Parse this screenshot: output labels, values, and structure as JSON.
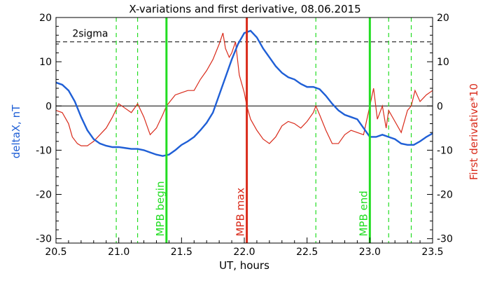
{
  "chart_data": {
    "type": "line",
    "title": "X-variations and first derivative, 08.06.2015",
    "xlabel": "UT, hours",
    "ylabel_left": "deltaX, nT",
    "ylabel_right": "First derivative*10",
    "xlim": [
      20.5,
      23.5
    ],
    "ylim": [
      -31,
      20
    ],
    "x_ticks": [
      "20.5",
      "21.0",
      "21.5",
      "22.0",
      "22.5",
      "23.0",
      "23.5"
    ],
    "y_ticks_left": [
      "-30",
      "-20",
      "-10",
      "0",
      "10",
      "20"
    ],
    "y_ticks_right": [
      "-30",
      "-20",
      "-10",
      "0",
      "10",
      "20"
    ],
    "colors": {
      "deltaX": "#1f5fd6",
      "derivative": "#d92b1b",
      "mpb_lines": "#22dd22",
      "mpb_max": "#d92b1b",
      "axis": "#000000"
    },
    "threshold": {
      "label": "2sigma",
      "value": 14.5
    },
    "zero_line": 0,
    "vertical_solid": [
      {
        "x": 21.38,
        "label": "MPB begin",
        "color": "#22dd22"
      },
      {
        "x": 22.02,
        "label": "MPB max",
        "color": "#d92b1b"
      },
      {
        "x": 23.0,
        "label": "MPB end",
        "color": "#22dd22"
      }
    ],
    "vertical_dashed": [
      20.98,
      21.15,
      22.57,
      23.15,
      23.33
    ],
    "series": [
      {
        "name": "deltaX, nT",
        "x": [
          20.5,
          20.55,
          20.6,
          20.65,
          20.7,
          20.75,
          20.8,
          20.85,
          20.9,
          20.95,
          21.0,
          21.05,
          21.1,
          21.15,
          21.2,
          21.25,
          21.3,
          21.35,
          21.4,
          21.45,
          21.5,
          21.55,
          21.6,
          21.65,
          21.7,
          21.75,
          21.8,
          21.85,
          21.9,
          21.95,
          22.0,
          22.05,
          22.1,
          22.15,
          22.2,
          22.25,
          22.3,
          22.35,
          22.4,
          22.45,
          22.5,
          22.55,
          22.6,
          22.65,
          22.7,
          22.75,
          22.8,
          22.85,
          22.9,
          22.95,
          23.0,
          23.05,
          23.1,
          23.15,
          23.2,
          23.25,
          23.3,
          23.35,
          23.4,
          23.45,
          23.5
        ],
        "values": [
          5.3,
          4.8,
          3.5,
          1.0,
          -2.5,
          -5.5,
          -7.5,
          -8.5,
          -9.0,
          -9.3,
          -9.3,
          -9.5,
          -9.7,
          -9.7,
          -10.0,
          -10.5,
          -11.0,
          -11.3,
          -11.0,
          -10.0,
          -8.8,
          -8.0,
          -7.0,
          -5.5,
          -3.8,
          -1.5,
          2.5,
          6.5,
          10.5,
          14.0,
          16.5,
          17.0,
          15.5,
          13.0,
          11.0,
          9.0,
          7.5,
          6.5,
          6.0,
          5.0,
          4.3,
          4.3,
          3.8,
          2.3,
          0.5,
          -1.0,
          -2.0,
          -2.5,
          -3.0,
          -5.0,
          -7.0,
          -7.0,
          -6.5,
          -7.0,
          -7.5,
          -8.5,
          -8.8,
          -8.8,
          -8.0,
          -7.0,
          -6.2
        ]
      },
      {
        "name": "First derivative*10",
        "x": [
          20.5,
          20.55,
          20.6,
          20.63,
          20.67,
          20.7,
          20.75,
          20.8,
          20.85,
          20.9,
          20.95,
          21.0,
          21.05,
          21.1,
          21.15,
          21.2,
          21.25,
          21.3,
          21.35,
          21.38,
          21.45,
          21.5,
          21.55,
          21.6,
          21.65,
          21.7,
          21.75,
          21.8,
          21.83,
          21.85,
          21.88,
          21.9,
          21.93,
          21.96,
          22.0,
          22.02,
          22.05,
          22.1,
          22.15,
          22.2,
          22.25,
          22.3,
          22.35,
          22.4,
          22.45,
          22.5,
          22.55,
          22.57,
          22.6,
          22.65,
          22.7,
          22.75,
          22.8,
          22.85,
          22.9,
          22.95,
          23.0,
          23.03,
          23.06,
          23.1,
          23.13,
          23.15,
          23.2,
          23.25,
          23.3,
          23.33,
          23.36,
          23.4,
          23.45,
          23.5
        ],
        "values": [
          -1.0,
          -1.5,
          -4.0,
          -7.0,
          -8.5,
          -9.0,
          -9.0,
          -8.0,
          -6.5,
          -5.0,
          -2.5,
          0.5,
          -0.5,
          -1.5,
          0.5,
          -2.5,
          -6.5,
          -5.0,
          -2.0,
          0.0,
          2.5,
          3.0,
          3.5,
          3.5,
          6.0,
          8.0,
          10.5,
          14.0,
          16.5,
          13.0,
          11.0,
          12.0,
          14.5,
          7.0,
          3.0,
          0.0,
          -3.0,
          -5.5,
          -7.5,
          -8.5,
          -7.0,
          -4.5,
          -3.5,
          -4.0,
          -5.0,
          -3.5,
          -1.5,
          0.0,
          -2.0,
          -5.5,
          -8.5,
          -8.5,
          -6.5,
          -5.5,
          -6.0,
          -6.5,
          0.0,
          4.0,
          -3.0,
          0.0,
          -5.0,
          -1.0,
          -3.5,
          -6.0,
          -1.0,
          0.0,
          3.5,
          1.0,
          2.5,
          3.5
        ]
      }
    ]
  }
}
